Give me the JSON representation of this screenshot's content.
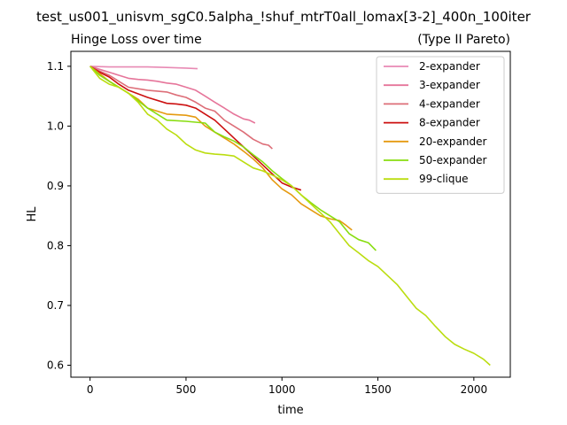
{
  "figure": {
    "suptitle": "test_us001_unisvm_sgC0.5alpha_!shuf_mtrT0all_lomax[3-2]_400n_100iter"
  },
  "chart_data": {
    "type": "line",
    "title": "Hinge Loss over time",
    "subtitle": "(Type II Pareto)",
    "xlabel": "time",
    "ylabel": "HL",
    "xlim": [
      -100,
      2190
    ],
    "ylim": [
      0.58,
      1.125
    ],
    "xticks": [
      0,
      500,
      1000,
      1500,
      2000
    ],
    "yticks": [
      0.6,
      0.7,
      0.8,
      0.9,
      1.0,
      1.1
    ],
    "xtick_labels": [
      "0",
      "500",
      "1000",
      "1500",
      "2000"
    ],
    "ytick_labels": [
      "0.6",
      "0.7",
      "0.8",
      "0.9",
      "1.0",
      "1.1"
    ],
    "grid": false,
    "legend": "top-right",
    "series": [
      {
        "name": "2-expander",
        "color": "#e88ab4",
        "x": [
          0,
          100,
          200,
          300,
          400,
          500,
          560
        ],
        "y": [
          1.1,
          1.099,
          1.099,
          1.099,
          1.098,
          1.097,
          1.096
        ]
      },
      {
        "name": "3-expander",
        "color": "#e6759a",
        "x": [
          0,
          50,
          100,
          150,
          200,
          250,
          300,
          350,
          400,
          450,
          500,
          550,
          600,
          650,
          700,
          750,
          800,
          830,
          860
        ],
        "y": [
          1.1,
          1.095,
          1.09,
          1.085,
          1.08,
          1.078,
          1.077,
          1.075,
          1.072,
          1.07,
          1.065,
          1.06,
          1.05,
          1.04,
          1.03,
          1.02,
          1.012,
          1.01,
          1.005
        ]
      },
      {
        "name": "4-expander",
        "color": "#dd6e78",
        "x": [
          0,
          50,
          100,
          150,
          200,
          300,
          400,
          450,
          500,
          550,
          600,
          650,
          700,
          750,
          800,
          850,
          900,
          930,
          950
        ],
        "y": [
          1.1,
          1.092,
          1.085,
          1.075,
          1.065,
          1.06,
          1.057,
          1.052,
          1.048,
          1.04,
          1.03,
          1.025,
          1.01,
          1.0,
          0.99,
          0.978,
          0.97,
          0.968,
          0.962
        ]
      },
      {
        "name": "8-expander",
        "color": "#cc1010",
        "x": [
          0,
          50,
          100,
          150,
          200,
          300,
          400,
          450,
          500,
          550,
          600,
          650,
          700,
          750,
          800,
          850,
          900,
          950,
          1000,
          1050,
          1100
        ],
        "y": [
          1.1,
          1.09,
          1.082,
          1.07,
          1.06,
          1.048,
          1.038,
          1.037,
          1.035,
          1.03,
          1.02,
          1.01,
          0.995,
          0.98,
          0.965,
          0.95,
          0.935,
          0.92,
          0.905,
          0.898,
          0.893
        ]
      },
      {
        "name": "20-expander",
        "color": "#e59a10",
        "x": [
          0,
          100,
          200,
          250,
          300,
          400,
          500,
          550,
          600,
          650,
          700,
          750,
          800,
          850,
          900,
          950,
          1000,
          1050,
          1100,
          1150,
          1200,
          1250,
          1300,
          1330,
          1365
        ],
        "y": [
          1.1,
          1.075,
          1.055,
          1.045,
          1.03,
          1.02,
          1.018,
          1.015,
          1.0,
          0.99,
          0.98,
          0.97,
          0.958,
          0.945,
          0.93,
          0.91,
          0.895,
          0.885,
          0.87,
          0.86,
          0.85,
          0.845,
          0.842,
          0.835,
          0.826
        ]
      },
      {
        "name": "50-expander",
        "color": "#88dd10",
        "x": [
          0,
          50,
          100,
          200,
          300,
          400,
          500,
          600,
          650,
          700,
          750,
          800,
          850,
          900,
          950,
          1000,
          1050,
          1100,
          1150,
          1200,
          1250,
          1300,
          1350,
          1400,
          1450,
          1490
        ],
        "y": [
          1.1,
          1.085,
          1.075,
          1.055,
          1.03,
          1.01,
          1.008,
          1.005,
          0.99,
          0.982,
          0.975,
          0.965,
          0.952,
          0.94,
          0.925,
          0.912,
          0.9,
          0.885,
          0.872,
          0.86,
          0.85,
          0.84,
          0.82,
          0.81,
          0.805,
          0.792
        ]
      },
      {
        "name": "99-clique",
        "color": "#bbdd10",
        "x": [
          0,
          50,
          100,
          150,
          200,
          250,
          300,
          350,
          400,
          450,
          500,
          550,
          600,
          650,
          700,
          750,
          800,
          850,
          900,
          950,
          1000,
          1050,
          1100,
          1150,
          1200,
          1250,
          1300,
          1350,
          1400,
          1450,
          1500,
          1550,
          1600,
          1650,
          1700,
          1750,
          1800,
          1850,
          1900,
          1950,
          2000,
          2050,
          2085
        ],
        "y": [
          1.1,
          1.08,
          1.07,
          1.065,
          1.055,
          1.04,
          1.02,
          1.01,
          0.995,
          0.985,
          0.97,
          0.96,
          0.955,
          0.953,
          0.952,
          0.95,
          0.94,
          0.93,
          0.925,
          0.918,
          0.91,
          0.9,
          0.885,
          0.87,
          0.855,
          0.84,
          0.82,
          0.8,
          0.788,
          0.775,
          0.765,
          0.75,
          0.735,
          0.715,
          0.695,
          0.683,
          0.665,
          0.648,
          0.635,
          0.627,
          0.62,
          0.61,
          0.6
        ]
      }
    ]
  }
}
